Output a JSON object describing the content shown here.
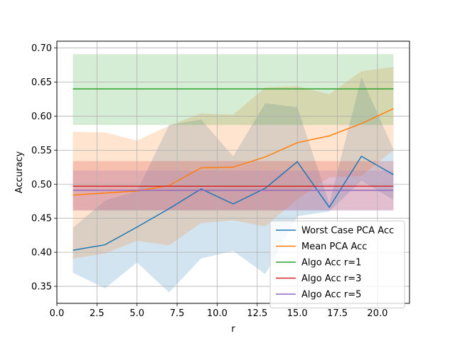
{
  "chart_data": {
    "type": "line",
    "title": "",
    "xlabel": "r",
    "ylabel": "Accuracy",
    "xlim": [
      0.0,
      22.0
    ],
    "ylim": [
      0.325,
      0.71
    ],
    "x_ticks": [
      0.0,
      2.5,
      5.0,
      7.5,
      10.0,
      12.5,
      15.0,
      17.5,
      20.0
    ],
    "x_tick_labels": [
      "0.0",
      "2.5",
      "5.0",
      "7.5",
      "10.0",
      "12.5",
      "15.0",
      "17.5",
      "20.0"
    ],
    "y_ticks": [
      0.35,
      0.4,
      0.45,
      0.5,
      0.55,
      0.6,
      0.65,
      0.7
    ],
    "y_tick_labels": [
      "0.35",
      "0.40",
      "0.45",
      "0.50",
      "0.55",
      "0.60",
      "0.65",
      "0.70"
    ],
    "grid": true,
    "legend_position": "lower-right",
    "series": [
      {
        "name": "Worst Case PCA Acc",
        "color": "#1f77b4",
        "x": [
          1,
          3,
          5,
          7,
          9,
          11,
          13,
          15,
          17,
          19,
          21
        ],
        "y": [
          0.403,
          0.411,
          0.437,
          0.464,
          0.493,
          0.471,
          0.494,
          0.533,
          0.466,
          0.541,
          0.514
        ],
        "band_lower": [
          0.37,
          0.347,
          0.385,
          0.341,
          0.391,
          0.402,
          0.368,
          0.453,
          0.46,
          0.505,
          0.477
        ],
        "band_upper": [
          0.436,
          0.476,
          0.49,
          0.587,
          0.595,
          0.541,
          0.619,
          0.613,
          0.472,
          0.657,
          0.551
        ]
      },
      {
        "name": "Mean PCA Acc",
        "color": "#ff7f0e",
        "x": [
          1,
          3,
          5,
          7,
          9,
          11,
          13,
          15,
          17,
          19,
          21
        ],
        "y": [
          0.484,
          0.487,
          0.49,
          0.498,
          0.524,
          0.525,
          0.54,
          0.561,
          0.571,
          0.589,
          0.611
        ],
        "band_lower": [
          0.391,
          0.398,
          0.417,
          0.41,
          0.443,
          0.447,
          0.438,
          0.478,
          0.51,
          0.512,
          0.55
        ],
        "band_upper": [
          0.577,
          0.576,
          0.564,
          0.586,
          0.604,
          0.602,
          0.642,
          0.644,
          0.632,
          0.666,
          0.672
        ]
      },
      {
        "name": "Algo Acc r=1",
        "color": "#2ca02c",
        "x": [
          1,
          21
        ],
        "y": [
          0.64,
          0.64
        ],
        "band_lower": [
          0.587,
          0.587
        ],
        "band_upper": [
          0.691,
          0.691
        ]
      },
      {
        "name": "Algo Acc r=3",
        "color": "#d62728",
        "x": [
          1,
          21
        ],
        "y": [
          0.497,
          0.497
        ],
        "band_lower": [
          0.462,
          0.462
        ],
        "band_upper": [
          0.534,
          0.534
        ]
      },
      {
        "name": "Algo Acc r=5",
        "color": "#9467bd",
        "x": [
          1,
          21
        ],
        "y": [
          0.491,
          0.491
        ],
        "band_lower": [
          0.461,
          0.461
        ],
        "band_upper": [
          0.52,
          0.52
        ]
      }
    ]
  }
}
